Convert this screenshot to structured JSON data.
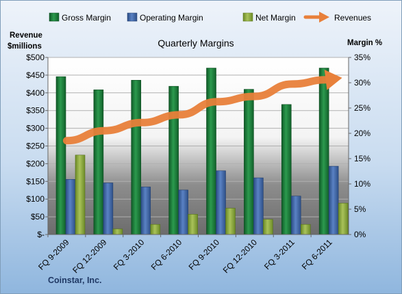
{
  "chart_data": {
    "type": "bar",
    "title": "Quarterly Margins",
    "ylabel_left": [
      "Revenue",
      "$millions"
    ],
    "ylabel_right": "Margin %",
    "footer": "Coinstar, Inc.",
    "categories": [
      "FQ 9-2009",
      "FQ 12-2009",
      "FQ 3-2010",
      "FQ 6-2010",
      "FQ 9-2010",
      "FQ 12-2010",
      "FQ 3-2011",
      "FQ 6-2011"
    ],
    "left_axis": {
      "min": 0,
      "max": 500,
      "step": 50,
      "tick_labels": [
        "$-",
        "$50",
        "$100",
        "$150",
        "$200",
        "$250",
        "$300",
        "$350",
        "$400",
        "$450",
        "$500"
      ]
    },
    "right_axis": {
      "min": 0,
      "max": 35,
      "step": 5,
      "tick_labels": [
        "0%",
        "5%",
        "10%",
        "15%",
        "20%",
        "25%",
        "30%",
        "35%"
      ]
    },
    "series": [
      {
        "name": "Gross Margin",
        "type": "bar",
        "axis": "right",
        "unit": "%",
        "color": "#1e7a3c",
        "values": [
          31.2,
          28.6,
          30.5,
          29.3,
          32.9,
          28.7,
          25.7,
          32.9
        ]
      },
      {
        "name": "Operating Margin",
        "type": "bar",
        "axis": "right",
        "unit": "%",
        "color": "#3a5f9e",
        "values": [
          10.9,
          10.2,
          9.4,
          8.8,
          12.6,
          11.2,
          7.6,
          13.5
        ]
      },
      {
        "name": "Net Margin",
        "type": "bar",
        "axis": "right",
        "unit": "%",
        "color": "#8aa63c",
        "values": [
          15.7,
          1.1,
          2.0,
          4.0,
          5.2,
          3.0,
          2.0,
          6.2
        ]
      },
      {
        "name": "Revenues",
        "type": "arrow-line",
        "axis": "left",
        "unit": "$ millions",
        "color": "#e8803a",
        "values": [
          265,
          293,
          316,
          338,
          375,
          390,
          425,
          438
        ]
      }
    ],
    "legend_position": "top",
    "grid": true
  }
}
